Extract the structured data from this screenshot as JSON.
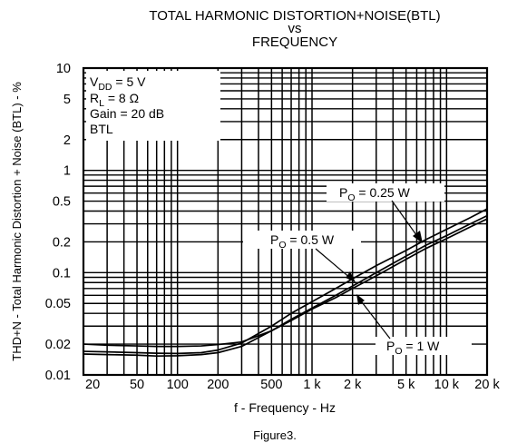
{
  "chart_data": {
    "type": "line",
    "title_lines": [
      "TOTAL HARMONIC DISTORTION+NOISE(BTL)",
      "vs",
      "FREQUENCY"
    ],
    "xlabel": "f - Frequency - Hz",
    "ylabel": "THD+N - Total Harmonic Distortion + Noise (BTL) - %",
    "x_scale": "log",
    "y_scale": "log",
    "xlim": [
      20,
      20000
    ],
    "ylim": [
      0.01,
      10
    ],
    "grid": true,
    "x_ticks": [
      {
        "value": 20,
        "label": "20"
      },
      {
        "value": 50,
        "label": "50"
      },
      {
        "value": 100,
        "label": "100"
      },
      {
        "value": 200,
        "label": "200"
      },
      {
        "value": 500,
        "label": "500"
      },
      {
        "value": 1000,
        "label": "1 k"
      },
      {
        "value": 2000,
        "label": "2 k"
      },
      {
        "value": 5000,
        "label": "5 k"
      },
      {
        "value": 10000,
        "label": "10 k"
      },
      {
        "value": 20000,
        "label": "20 k"
      }
    ],
    "y_ticks": [
      {
        "value": 0.01,
        "label": "0.01"
      },
      {
        "value": 0.02,
        "label": "0.02"
      },
      {
        "value": 0.05,
        "label": "0.05"
      },
      {
        "value": 0.1,
        "label": "0.1"
      },
      {
        "value": 0.2,
        "label": "0.2"
      },
      {
        "value": 0.5,
        "label": "0.5"
      },
      {
        "value": 1,
        "label": "1"
      },
      {
        "value": 2,
        "label": "2"
      },
      {
        "value": 5,
        "label": "5"
      },
      {
        "value": 10,
        "label": "10"
      }
    ],
    "conditions": {
      "vdd": {
        "main": "V",
        "sub": "DD",
        "rest": " = 5 V"
      },
      "rl": {
        "main": "R",
        "sub": "L",
        "rest": " = 8  Ω"
      },
      "gain": "Gain  = 20 dB",
      "mode": "BTL"
    },
    "series": [
      {
        "name": "PO = 0.25 W",
        "label": {
          "main": "P",
          "sub": "O",
          "rest": " = 0.25 W"
        },
        "x": [
          20,
          30,
          50,
          70,
          100,
          150,
          200,
          300,
          500,
          700,
          1000,
          1500,
          2000,
          3000,
          5000,
          7000,
          10000,
          15000,
          20000
        ],
        "y": [
          0.016,
          0.0158,
          0.0156,
          0.0153,
          0.0154,
          0.0158,
          0.0165,
          0.019,
          0.027,
          0.035,
          0.045,
          0.06,
          0.074,
          0.1,
          0.145,
          0.185,
          0.23,
          0.3,
          0.36
        ]
      },
      {
        "name": "PO = 0.5 W",
        "label": {
          "main": "P",
          "sub": "O",
          "rest": " = 0.5 W"
        },
        "x": [
          20,
          30,
          50,
          70,
          100,
          150,
          200,
          300,
          500,
          700,
          1000,
          1500,
          2000,
          3000,
          5000,
          7000,
          10000,
          15000,
          20000
        ],
        "y": [
          0.017,
          0.0168,
          0.0165,
          0.0163,
          0.0162,
          0.0165,
          0.0175,
          0.0205,
          0.03,
          0.04,
          0.052,
          0.07,
          0.087,
          0.117,
          0.165,
          0.21,
          0.265,
          0.345,
          0.42
        ]
      },
      {
        "name": "PO = 1 W",
        "label": {
          "main": "P",
          "sub": "O",
          "rest": " = 1 W"
        },
        "x": [
          20,
          30,
          50,
          70,
          100,
          150,
          200,
          300,
          500,
          700,
          1000,
          1500,
          2000,
          3000,
          5000,
          7000,
          10000,
          15000,
          20000
        ],
        "y": [
          0.02,
          0.0195,
          0.0192,
          0.019,
          0.019,
          0.0192,
          0.0198,
          0.021,
          0.027,
          0.034,
          0.044,
          0.057,
          0.07,
          0.093,
          0.135,
          0.172,
          0.215,
          0.28,
          0.335
        ]
      }
    ]
  },
  "caption": "Figure3."
}
